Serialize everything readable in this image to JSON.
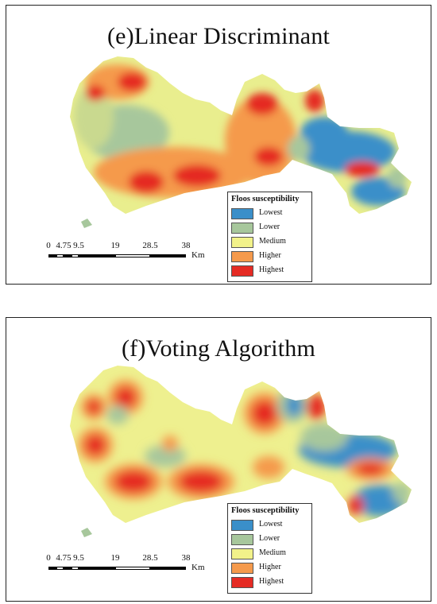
{
  "colors": {
    "lowest": "#3a8fc9",
    "lower": "#a7c79c",
    "medium": "#f2f28a",
    "higher": "#f59a4c",
    "highest": "#e52b24"
  },
  "panels": [
    {
      "title": "(e)Linear Discriminant",
      "legend": {
        "title": "Floos susceptibility",
        "items": [
          {
            "label": "Lowest",
            "color": "#3a8fc9"
          },
          {
            "label": "Lower",
            "color": "#a7c79c"
          },
          {
            "label": "Medium",
            "color": "#f2f28a"
          },
          {
            "label": "Higher",
            "color": "#f59a4c"
          },
          {
            "label": "Highest",
            "color": "#e52b24"
          }
        ]
      },
      "scalebar": {
        "ticks": [
          "0",
          "4.75",
          "9.5",
          "19",
          "28.5",
          "38"
        ],
        "unit": "Km"
      }
    },
    {
      "title": "(f)Voting Algorithm",
      "legend": {
        "title": "Floos susceptibility",
        "items": [
          {
            "label": "Lowest",
            "color": "#3a8fc9"
          },
          {
            "label": "Lower",
            "color": "#a7c79c"
          },
          {
            "label": "Medium",
            "color": "#f2f28a"
          },
          {
            "label": "Higher",
            "color": "#f59a4c"
          },
          {
            "label": "Highest",
            "color": "#e52b24"
          }
        ]
      },
      "scalebar": {
        "ticks": [
          "0",
          "4.75",
          "9.5",
          "19",
          "28.5",
          "38"
        ],
        "unit": "Km"
      }
    }
  ]
}
